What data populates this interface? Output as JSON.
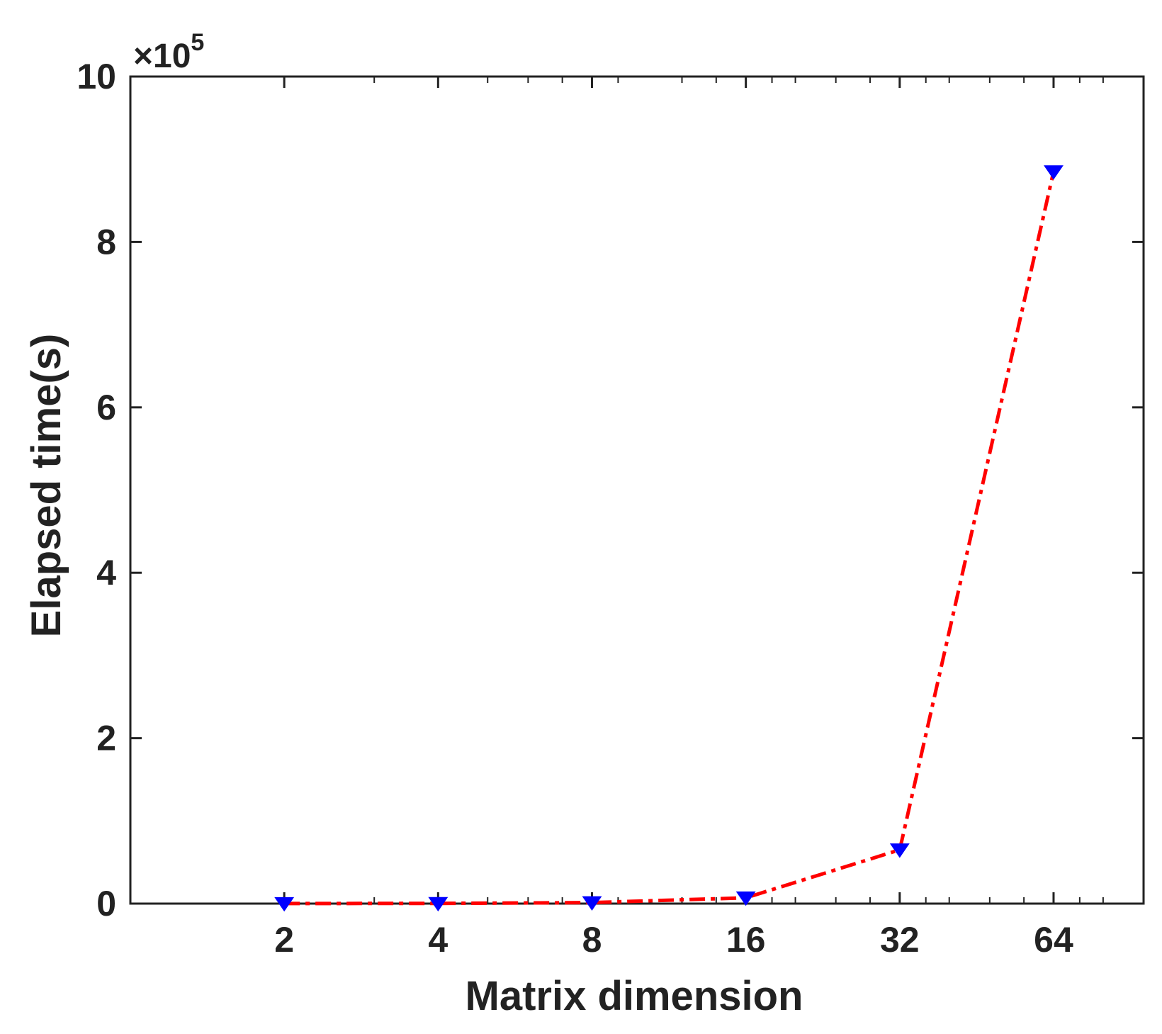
{
  "chart_data": {
    "type": "line",
    "x_scale": "log2",
    "categories": [
      "2",
      "4",
      "8",
      "16",
      "32",
      "64"
    ],
    "x": [
      2,
      4,
      8,
      16,
      32,
      64
    ],
    "series": [
      {
        "values": [
          80,
          250,
          1200,
          7000,
          65000,
          885000
        ],
        "line_color": "#ff0000",
        "line_style": "dash-dot",
        "marker": "triangle-down",
        "marker_color": "#0000ff"
      }
    ],
    "xlabel": "Matrix dimension",
    "ylabel": "Elapsed time(s)",
    "ylim": [
      0,
      1000000
    ],
    "xlim": [
      1,
      96
    ],
    "yticks": [
      0,
      200000,
      400000,
      600000,
      800000,
      1000000
    ],
    "ytick_labels": [
      "0",
      "2",
      "4",
      "6",
      "8",
      "10"
    ],
    "y_exponent_label": "×10",
    "y_exponent_power": "5",
    "grid": false,
    "box": true
  }
}
